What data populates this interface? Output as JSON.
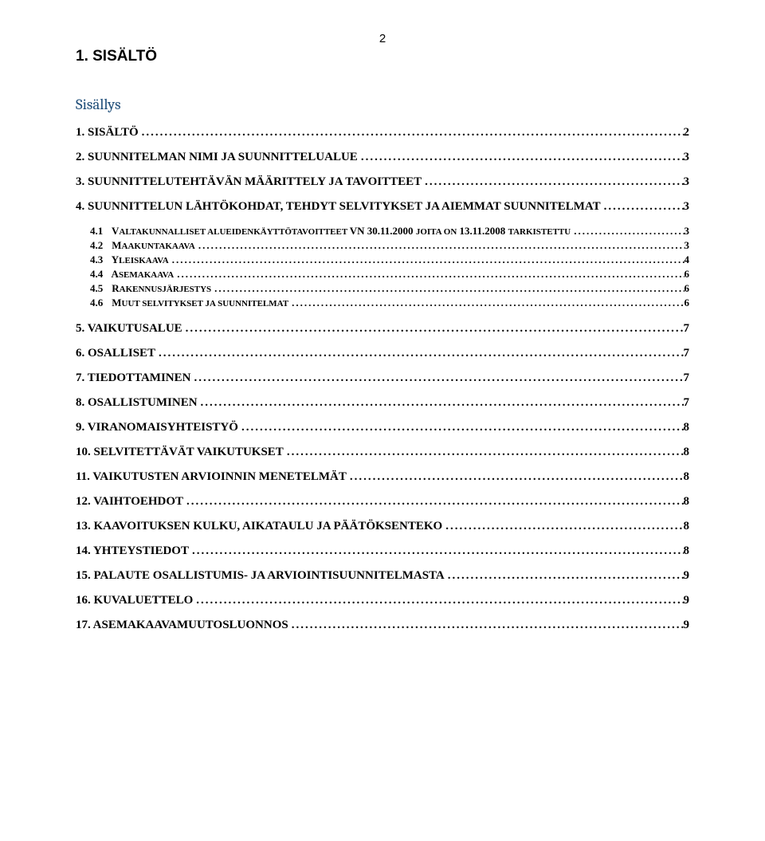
{
  "page_number": "2",
  "doc_title": "1. SISÄLTÖ",
  "contents_heading": "Sisällys",
  "colors": {
    "heading_blue": "#1f4e79",
    "text": "#000000",
    "background": "#ffffff"
  },
  "typography": {
    "body_font": "Times New Roman",
    "heading_font": "Arial",
    "subtitle_font": "Cambria",
    "title_size_pt": 14,
    "subtitle_size_pt": 14,
    "level1_size_pt": 11,
    "level2_size_pt": 10
  },
  "toc": {
    "items": [
      {
        "level": 1,
        "label": "1. SISÄLTÖ",
        "page": "2"
      },
      {
        "level": 1,
        "label": "2.    SUUNNITELMAN NIMI JA SUUNNITTELUALUE",
        "page": "3"
      },
      {
        "level": 1,
        "label": "3. SUUNNITTELUTEHTÄVÄN MÄÄRITTELY JA TAVOITTEET",
        "page": "3"
      },
      {
        "level": 1,
        "label": "4.    SUUNNITTELUN LÄHTÖKOHDAT, TEHDYT SELVITYKSET JA AIEMMAT SUUNNITELMAT",
        "page": "3",
        "gap_after": false
      },
      {
        "level": 2,
        "label_num": "4.1",
        "label_start": "V",
        "label_rest": "ALTAKUNNALLISET ALUEIDENKÄYTTÖTAVOITTEET ",
        "label_tail_start": "VN 30.11.2000 ",
        "label_tail_sc": "JOITA ON",
        "label_tail_end": " 13.11.2008 ",
        "label_tail_sc2": "TARKISTETTU",
        "page": "3"
      },
      {
        "level": 2,
        "label_num": "4.2",
        "label_start": "M",
        "label_rest": "AAKUNTAKAAVA",
        "page": "3"
      },
      {
        "level": 2,
        "label_num": "4.3",
        "label_start": "Y",
        "label_rest": "LEISKAAVA",
        "page": "4"
      },
      {
        "level": 2,
        "label_num": "4.4",
        "label_start": "A",
        "label_rest": "SEMAKAAVA",
        "page": "6"
      },
      {
        "level": 2,
        "label_num": "4.5",
        "label_start": "R",
        "label_rest": "AKENNUSJÄRJESTYS",
        "page": "6"
      },
      {
        "level": 2,
        "label_num": "4.6",
        "label_start": "M",
        "label_rest": "UUT SELVITYKSET JA SUUNNITELMAT",
        "page": "6",
        "gap_after": true
      },
      {
        "level": 1,
        "label": "5.    VAIKUTUSALUE",
        "page": "7"
      },
      {
        "level": 1,
        "label": "6. OSALLISET",
        "page": "7"
      },
      {
        "level": 1,
        "label": "7. TIEDOTTAMINEN",
        "page": "7"
      },
      {
        "level": 1,
        "label": "8. OSALLISTUMINEN",
        "page": "7"
      },
      {
        "level": 1,
        "label": "9. VIRANOMAISYHTEISTYÖ",
        "page": "8"
      },
      {
        "level": 1,
        "label": "10. SELVITETTÄVÄT VAIKUTUKSET",
        "page": "8"
      },
      {
        "level": 1,
        "label": "11. VAIKUTUSTEN ARVIOINNIN MENETELMÄT",
        "page": "8"
      },
      {
        "level": 1,
        "label": "12. VAIHTOEHDOT",
        "page": "8"
      },
      {
        "level": 1,
        "label": "13. KAAVOITUKSEN KULKU, AIKATAULU JA     PÄÄTÖKSENTEKO",
        "page": "8"
      },
      {
        "level": 1,
        "label": "14. YHTEYSTIEDOT",
        "page": "8"
      },
      {
        "level": 1,
        "label": "15. PALAUTE OSALLISTUMIS- JA ARVIOINTISUUNNITELMASTA",
        "page": "9"
      },
      {
        "level": 1,
        "label": "16. KUVALUETTELO",
        "page": "9"
      },
      {
        "level": 1,
        "label": "17. ASEMAKAAVAMUUTOSLUONNOS",
        "page": "9"
      }
    ]
  }
}
